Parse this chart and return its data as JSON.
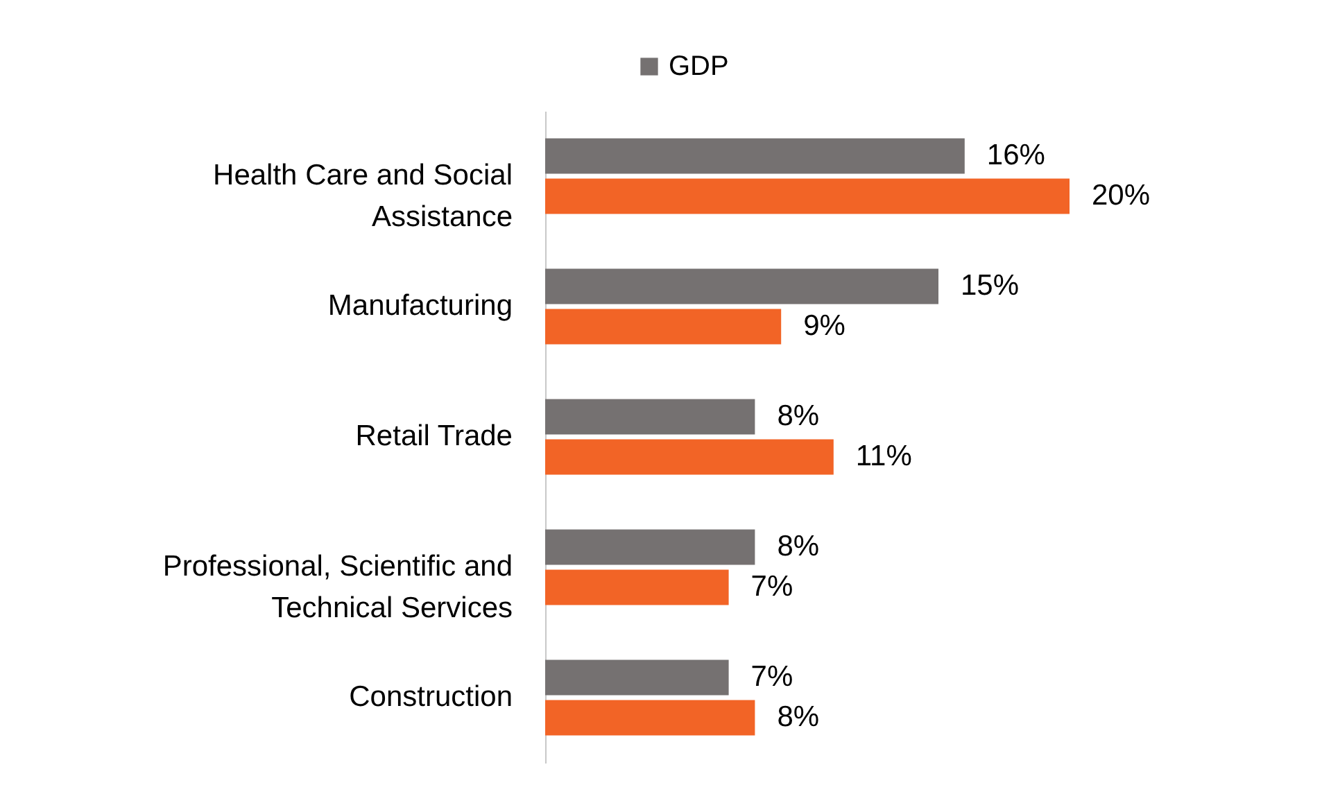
{
  "chart_data": {
    "type": "bar",
    "orientation": "horizontal",
    "categories": [
      "Health Care and Social Assistance",
      "Manufacturing",
      "Retail Trade",
      "Professional, Scientific and Technical Services",
      "Construction"
    ],
    "series": [
      {
        "name": "GDP",
        "color": "#757171",
        "values": [
          16,
          15,
          8,
          8,
          7
        ],
        "value_labels": [
          "16%",
          "15%",
          "8%",
          "8%",
          "7%"
        ]
      },
      {
        "color": "#f26426",
        "values": [
          20,
          9,
          11,
          7,
          8
        ],
        "value_labels": [
          "20%",
          "9%",
          "11%",
          "7%",
          "8%"
        ]
      }
    ],
    "legend": "top",
    "tick_labels": "y"
  }
}
